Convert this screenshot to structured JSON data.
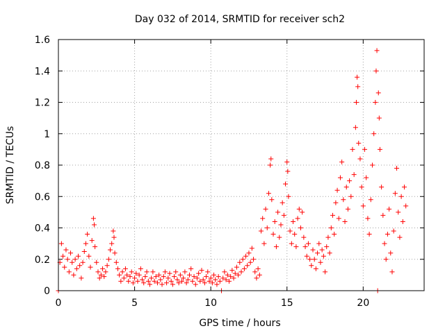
{
  "chart_data": {
    "type": "scatter",
    "title": "Day 032 of 2014, SRMTID for receiver sch2",
    "xlabel": "GPS time / hours",
    "ylabel": "SRMTID / TECUs",
    "xlim": [
      0,
      24
    ],
    "ylim": [
      0,
      1.6
    ],
    "xticks": [
      0,
      5,
      10,
      15,
      20
    ],
    "xtick_labels": [
      "0",
      "5",
      "10",
      "15",
      "20"
    ],
    "yticks": [
      0,
      0.2,
      0.4,
      0.6,
      0.8,
      1.0,
      1.2,
      1.4,
      1.6
    ],
    "ytick_labels": [
      "0",
      "0.2",
      "0.4",
      "0.6",
      "0.8",
      "1",
      "1.2",
      "1.4",
      "1.6"
    ],
    "grid": true,
    "marker": "plus",
    "color": "#ff0000",
    "series": [
      {
        "name": "SRMTID",
        "points": [
          [
            0.0,
            0.0
          ],
          [
            0.1,
            0.18
          ],
          [
            0.2,
            0.3
          ],
          [
            0.3,
            0.22
          ],
          [
            0.4,
            0.15
          ],
          [
            0.5,
            0.26
          ],
          [
            0.6,
            0.2
          ],
          [
            0.7,
            0.12
          ],
          [
            0.8,
            0.24
          ],
          [
            0.9,
            0.18
          ],
          [
            1.0,
            0.1
          ],
          [
            1.1,
            0.2
          ],
          [
            1.2,
            0.14
          ],
          [
            1.3,
            0.22
          ],
          [
            1.4,
            0.16
          ],
          [
            1.5,
            0.08
          ],
          [
            1.6,
            0.18
          ],
          [
            1.7,
            0.25
          ],
          [
            1.8,
            0.3
          ],
          [
            1.9,
            0.36
          ],
          [
            2.0,
            0.22
          ],
          [
            2.1,
            0.15
          ],
          [
            2.2,
            0.32
          ],
          [
            2.3,
            0.46
          ],
          [
            2.35,
            0.42
          ],
          [
            2.4,
            0.28
          ],
          [
            2.5,
            0.18
          ],
          [
            2.6,
            0.12
          ],
          [
            2.7,
            0.08
          ],
          [
            2.8,
            0.1
          ],
          [
            2.9,
            0.14
          ],
          [
            3.0,
            0.09
          ],
          [
            3.1,
            0.12
          ],
          [
            3.2,
            0.16
          ],
          [
            3.3,
            0.2
          ],
          [
            3.4,
            0.26
          ],
          [
            3.5,
            0.3
          ],
          [
            3.6,
            0.38
          ],
          [
            3.65,
            0.34
          ],
          [
            3.7,
            0.24
          ],
          [
            3.8,
            0.18
          ],
          [
            3.9,
            0.14
          ],
          [
            4.0,
            0.1
          ],
          [
            4.1,
            0.06
          ],
          [
            4.2,
            0.12
          ],
          [
            4.3,
            0.08
          ],
          [
            4.4,
            0.14
          ],
          [
            4.5,
            0.1
          ],
          [
            4.6,
            0.06
          ],
          [
            4.7,
            0.09
          ],
          [
            4.8,
            0.12
          ],
          [
            4.9,
            0.05
          ],
          [
            5.0,
            0.08
          ],
          [
            5.1,
            0.11
          ],
          [
            5.2,
            0.06
          ],
          [
            5.3,
            0.1
          ],
          [
            5.4,
            0.14
          ],
          [
            5.5,
            0.07
          ],
          [
            5.6,
            0.05
          ],
          [
            5.7,
            0.09
          ],
          [
            5.8,
            0.12
          ],
          [
            5.9,
            0.06
          ],
          [
            6.0,
            0.04
          ],
          [
            6.1,
            0.08
          ],
          [
            6.2,
            0.12
          ],
          [
            6.3,
            0.06
          ],
          [
            6.4,
            0.09
          ],
          [
            6.5,
            0.05
          ],
          [
            6.6,
            0.1
          ],
          [
            6.7,
            0.07
          ],
          [
            6.8,
            0.04
          ],
          [
            6.9,
            0.09
          ],
          [
            7.0,
            0.12
          ],
          [
            7.1,
            0.05
          ],
          [
            7.2,
            0.08
          ],
          [
            7.3,
            0.11
          ],
          [
            7.4,
            0.06
          ],
          [
            7.5,
            0.04
          ],
          [
            7.6,
            0.09
          ],
          [
            7.7,
            0.12
          ],
          [
            7.8,
            0.07
          ],
          [
            7.9,
            0.05
          ],
          [
            8.0,
            0.1
          ],
          [
            8.1,
            0.06
          ],
          [
            8.2,
            0.08
          ],
          [
            8.3,
            0.12
          ],
          [
            8.4,
            0.05
          ],
          [
            8.5,
            0.07
          ],
          [
            8.6,
            0.1
          ],
          [
            8.7,
            0.14
          ],
          [
            8.8,
            0.06
          ],
          [
            8.9,
            0.09
          ],
          [
            9.0,
            0.04
          ],
          [
            9.1,
            0.08
          ],
          [
            9.2,
            0.11
          ],
          [
            9.3,
            0.06
          ],
          [
            9.4,
            0.13
          ],
          [
            9.5,
            0.07
          ],
          [
            9.6,
            0.05
          ],
          [
            9.7,
            0.09
          ],
          [
            9.8,
            0.12
          ],
          [
            9.9,
            0.06
          ],
          [
            10.0,
            0.08
          ],
          [
            10.1,
            0.05
          ],
          [
            10.2,
            0.1
          ],
          [
            10.3,
            0.07
          ],
          [
            10.4,
            0.04
          ],
          [
            10.5,
            0.09
          ],
          [
            10.6,
            0.06
          ],
          [
            10.7,
            0.0
          ],
          [
            10.8,
            0.08
          ],
          [
            10.9,
            0.12
          ],
          [
            11.0,
            0.07
          ],
          [
            11.1,
            0.1
          ],
          [
            11.2,
            0.06
          ],
          [
            11.3,
            0.09
          ],
          [
            11.4,
            0.13
          ],
          [
            11.5,
            0.08
          ],
          [
            11.6,
            0.11
          ],
          [
            11.7,
            0.15
          ],
          [
            11.8,
            0.1
          ],
          [
            11.9,
            0.18
          ],
          [
            12.0,
            0.12
          ],
          [
            12.1,
            0.2
          ],
          [
            12.2,
            0.14
          ],
          [
            12.3,
            0.22
          ],
          [
            12.4,
            0.16
          ],
          [
            12.5,
            0.24
          ],
          [
            12.6,
            0.18
          ],
          [
            12.7,
            0.27
          ],
          [
            12.8,
            0.2
          ],
          [
            12.9,
            0.12
          ],
          [
            13.0,
            0.08
          ],
          [
            13.1,
            0.14
          ],
          [
            13.2,
            0.1
          ],
          [
            13.3,
            0.38
          ],
          [
            13.4,
            0.46
          ],
          [
            13.5,
            0.3
          ],
          [
            13.6,
            0.52
          ],
          [
            13.7,
            0.4
          ],
          [
            13.8,
            0.62
          ],
          [
            13.9,
            0.8
          ],
          [
            13.95,
            0.84
          ],
          [
            14.0,
            0.58
          ],
          [
            14.1,
            0.36
          ],
          [
            14.2,
            0.44
          ],
          [
            14.3,
            0.28
          ],
          [
            14.4,
            0.5
          ],
          [
            14.5,
            0.34
          ],
          [
            14.6,
            0.42
          ],
          [
            14.7,
            0.56
          ],
          [
            14.8,
            0.48
          ],
          [
            14.9,
            0.68
          ],
          [
            15.0,
            0.82
          ],
          [
            15.05,
            0.76
          ],
          [
            15.1,
            0.6
          ],
          [
            15.2,
            0.38
          ],
          [
            15.3,
            0.3
          ],
          [
            15.4,
            0.44
          ],
          [
            15.5,
            0.36
          ],
          [
            15.6,
            0.28
          ],
          [
            15.7,
            0.46
          ],
          [
            15.8,
            0.52
          ],
          [
            15.9,
            0.4
          ],
          [
            16.0,
            0.5
          ],
          [
            16.1,
            0.34
          ],
          [
            16.2,
            0.28
          ],
          [
            16.3,
            0.22
          ],
          [
            16.4,
            0.3
          ],
          [
            16.5,
            0.2
          ],
          [
            16.6,
            0.16
          ],
          [
            16.7,
            0.26
          ],
          [
            16.8,
            0.2
          ],
          [
            16.9,
            0.14
          ],
          [
            17.0,
            0.24
          ],
          [
            17.1,
            0.3
          ],
          [
            17.2,
            0.18
          ],
          [
            17.3,
            0.26
          ],
          [
            17.4,
            0.22
          ],
          [
            17.5,
            0.12
          ],
          [
            17.6,
            0.28
          ],
          [
            17.7,
            0.34
          ],
          [
            17.8,
            0.24
          ],
          [
            17.9,
            0.4
          ],
          [
            18.0,
            0.48
          ],
          [
            18.1,
            0.36
          ],
          [
            18.2,
            0.56
          ],
          [
            18.3,
            0.64
          ],
          [
            18.4,
            0.46
          ],
          [
            18.5,
            0.72
          ],
          [
            18.6,
            0.82
          ],
          [
            18.7,
            0.58
          ],
          [
            18.8,
            0.44
          ],
          [
            18.9,
            0.66
          ],
          [
            19.0,
            0.52
          ],
          [
            19.1,
            0.7
          ],
          [
            19.2,
            0.6
          ],
          [
            19.3,
            0.9
          ],
          [
            19.4,
            0.74
          ],
          [
            19.5,
            1.04
          ],
          [
            19.55,
            1.2
          ],
          [
            19.6,
            1.36
          ],
          [
            19.65,
            1.3
          ],
          [
            19.7,
            0.94
          ],
          [
            19.8,
            0.84
          ],
          [
            19.9,
            0.66
          ],
          [
            20.0,
            0.54
          ],
          [
            20.1,
            0.9
          ],
          [
            20.2,
            0.72
          ],
          [
            20.3,
            0.46
          ],
          [
            20.4,
            0.36
          ],
          [
            20.5,
            0.58
          ],
          [
            20.6,
            0.8
          ],
          [
            20.7,
            1.0
          ],
          [
            20.8,
            1.2
          ],
          [
            20.85,
            1.4
          ],
          [
            20.9,
            1.53
          ],
          [
            20.95,
            0.0
          ],
          [
            21.0,
            1.26
          ],
          [
            21.05,
            1.1
          ],
          [
            21.1,
            0.9
          ],
          [
            21.2,
            0.66
          ],
          [
            21.3,
            0.48
          ],
          [
            21.4,
            0.3
          ],
          [
            21.5,
            0.2
          ],
          [
            21.6,
            0.36
          ],
          [
            21.7,
            0.52
          ],
          [
            21.8,
            0.24
          ],
          [
            21.9,
            0.12
          ],
          [
            22.0,
            0.38
          ],
          [
            22.1,
            0.62
          ],
          [
            22.2,
            0.78
          ],
          [
            22.3,
            0.5
          ],
          [
            22.4,
            0.34
          ],
          [
            22.5,
            0.6
          ],
          [
            22.6,
            0.44
          ],
          [
            22.7,
            0.66
          ],
          [
            22.8,
            0.54
          ]
        ]
      }
    ]
  }
}
